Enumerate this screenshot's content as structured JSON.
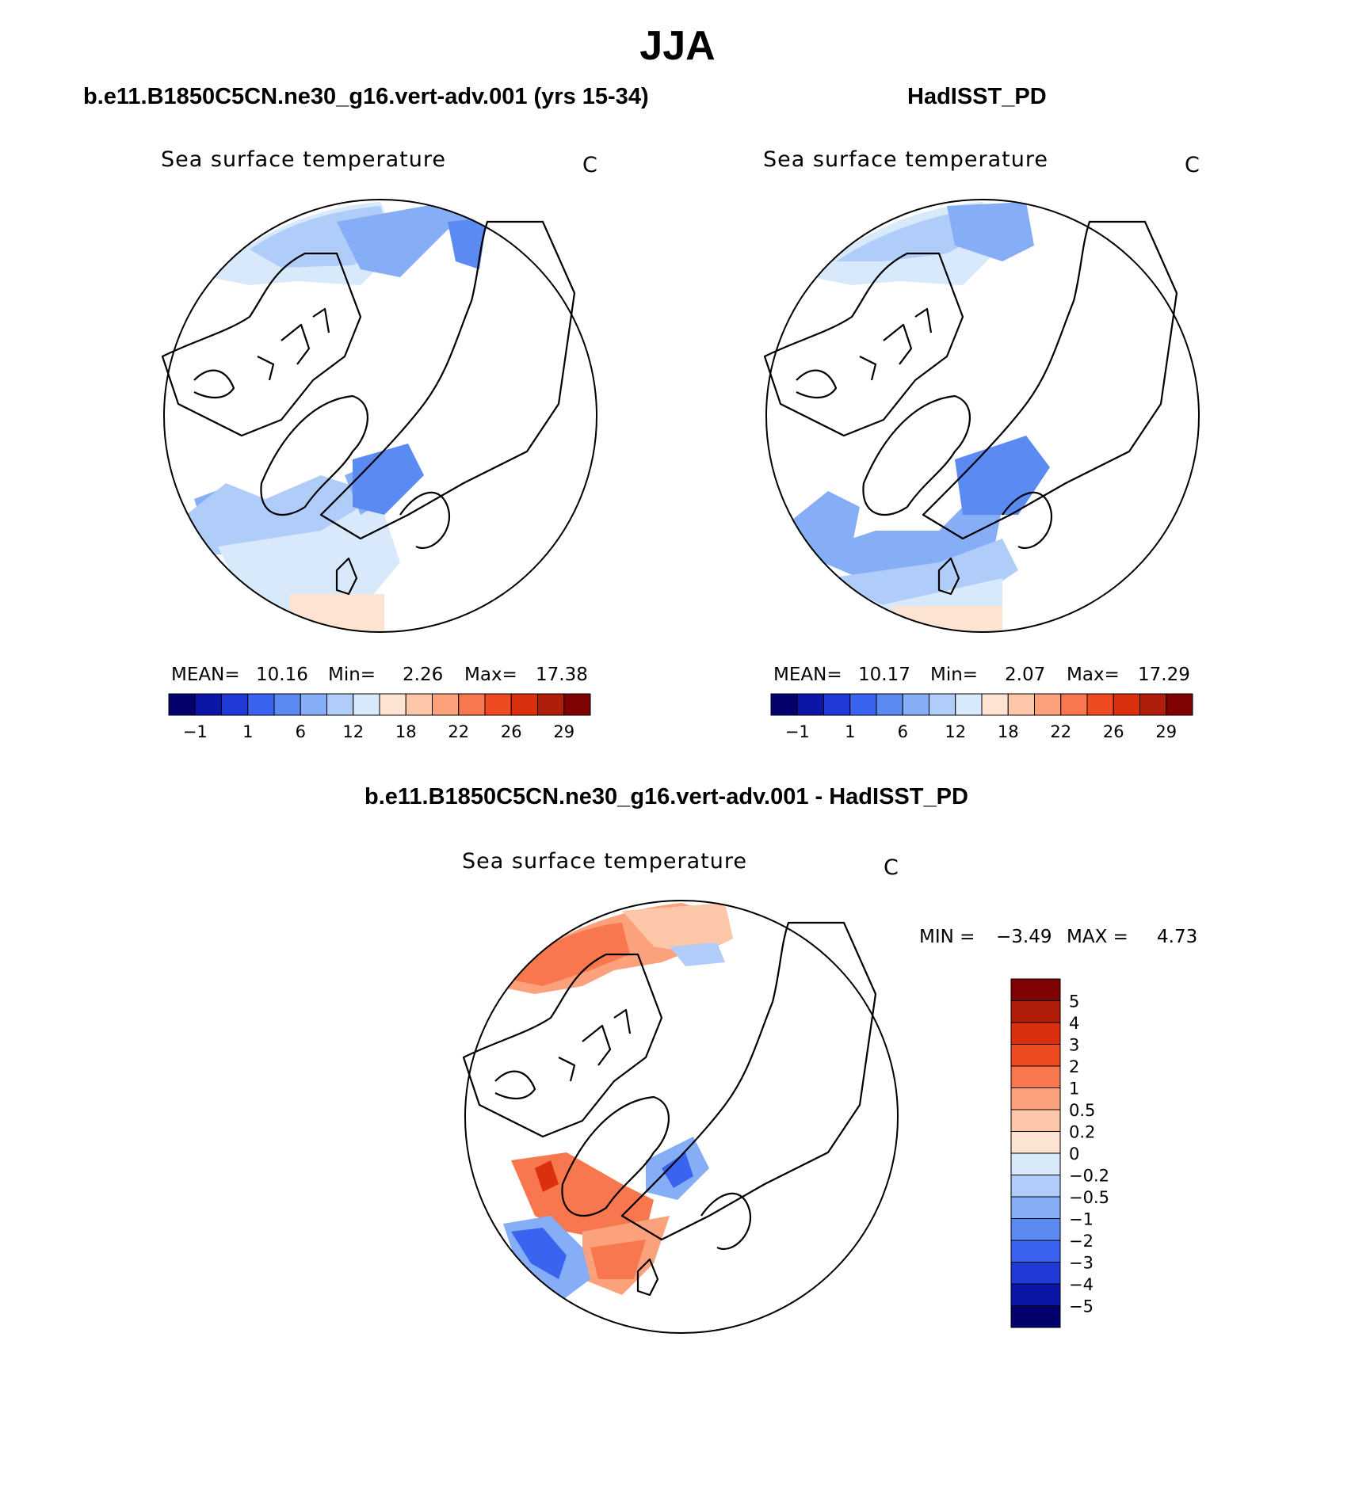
{
  "title": "JJA",
  "panels": {
    "model": {
      "case_title": "b.e11.B1850C5CN.ne30_g16.vert-adv.001 (yrs 15-34)",
      "field_label": "Sea surface temperature",
      "units": "C",
      "stats": {
        "mean_label": "MEAN=",
        "mean": "10.16",
        "min_label": "Min=",
        "min": "2.26",
        "max_label": "Max=",
        "max": "17.38"
      }
    },
    "obs": {
      "case_title": "HadISST_PD",
      "field_label": "Sea surface temperature",
      "units": "C",
      "stats": {
        "mean_label": "MEAN=",
        "mean": "10.17",
        "min_label": "Min=",
        "min": "2.07",
        "max_label": "Max=",
        "max": "17.29"
      }
    },
    "diff": {
      "case_title": "b.e11.B1850C5CN.ne30_g16.vert-adv.001 - HadISST_PD",
      "field_label": "Sea surface temperature",
      "units": "C",
      "stats": {
        "min_label": "MIN =",
        "min": "−3.49",
        "max_label": "MAX =",
        "max": "4.73"
      }
    }
  },
  "chart_data": [
    {
      "type": "heatmap",
      "projection": "north polar stereographic",
      "title": "b.e11.B1850C5CN.ne30_g16.vert-adv.001 (yrs 15-34)",
      "variable": "Sea surface temperature",
      "units": "C",
      "mean": 10.16,
      "min": 2.26,
      "max": 17.38,
      "colorbar": {
        "orientation": "horizontal",
        "tick_labels": [
          "−1",
          "1",
          "6",
          "12",
          "18",
          "22",
          "26",
          "29"
        ],
        "colors": [
          "#03006e",
          "#0b16a8",
          "#1f3ad6",
          "#3a63ef",
          "#5c8af3",
          "#86aef6",
          "#b0cdf9",
          "#d8e9fb",
          "#fde4d2",
          "#fcc6a8",
          "#fba27d",
          "#f8774e",
          "#f04a22",
          "#db3010",
          "#b01d08",
          "#800303"
        ]
      }
    },
    {
      "type": "heatmap",
      "projection": "north polar stereographic",
      "title": "HadISST_PD",
      "variable": "Sea surface temperature",
      "units": "C",
      "mean": 10.17,
      "min": 2.07,
      "max": 17.29,
      "colorbar": {
        "orientation": "horizontal",
        "tick_labels": [
          "−1",
          "1",
          "6",
          "12",
          "18",
          "22",
          "26",
          "29"
        ],
        "colors": [
          "#03006e",
          "#0b16a8",
          "#1f3ad6",
          "#3a63ef",
          "#5c8af3",
          "#86aef6",
          "#b0cdf9",
          "#d8e9fb",
          "#fde4d2",
          "#fcc6a8",
          "#fba27d",
          "#f8774e",
          "#f04a22",
          "#db3010",
          "#b01d08",
          "#800303"
        ]
      }
    },
    {
      "type": "heatmap",
      "projection": "north polar stereographic",
      "title": "b.e11.B1850C5CN.ne30_g16.vert-adv.001 - HadISST_PD",
      "variable": "Sea surface temperature",
      "units": "C",
      "min": -3.49,
      "max": 4.73,
      "colorbar": {
        "orientation": "vertical",
        "tick_labels": [
          "5",
          "4",
          "3",
          "2",
          "1",
          "0.5",
          "0.2",
          "0",
          "−0.2",
          "−0.5",
          "−1",
          "−2",
          "−3",
          "−4",
          "−5"
        ],
        "colors": [
          "#800303",
          "#b01d08",
          "#db3010",
          "#f04a22",
          "#f8774e",
          "#fba27d",
          "#fcc6a8",
          "#fde4d2",
          "#d8e9fb",
          "#b0cdf9",
          "#86aef6",
          "#5c8af3",
          "#3a63ef",
          "#1f3ad6",
          "#0b16a8",
          "#03006e"
        ]
      }
    }
  ]
}
